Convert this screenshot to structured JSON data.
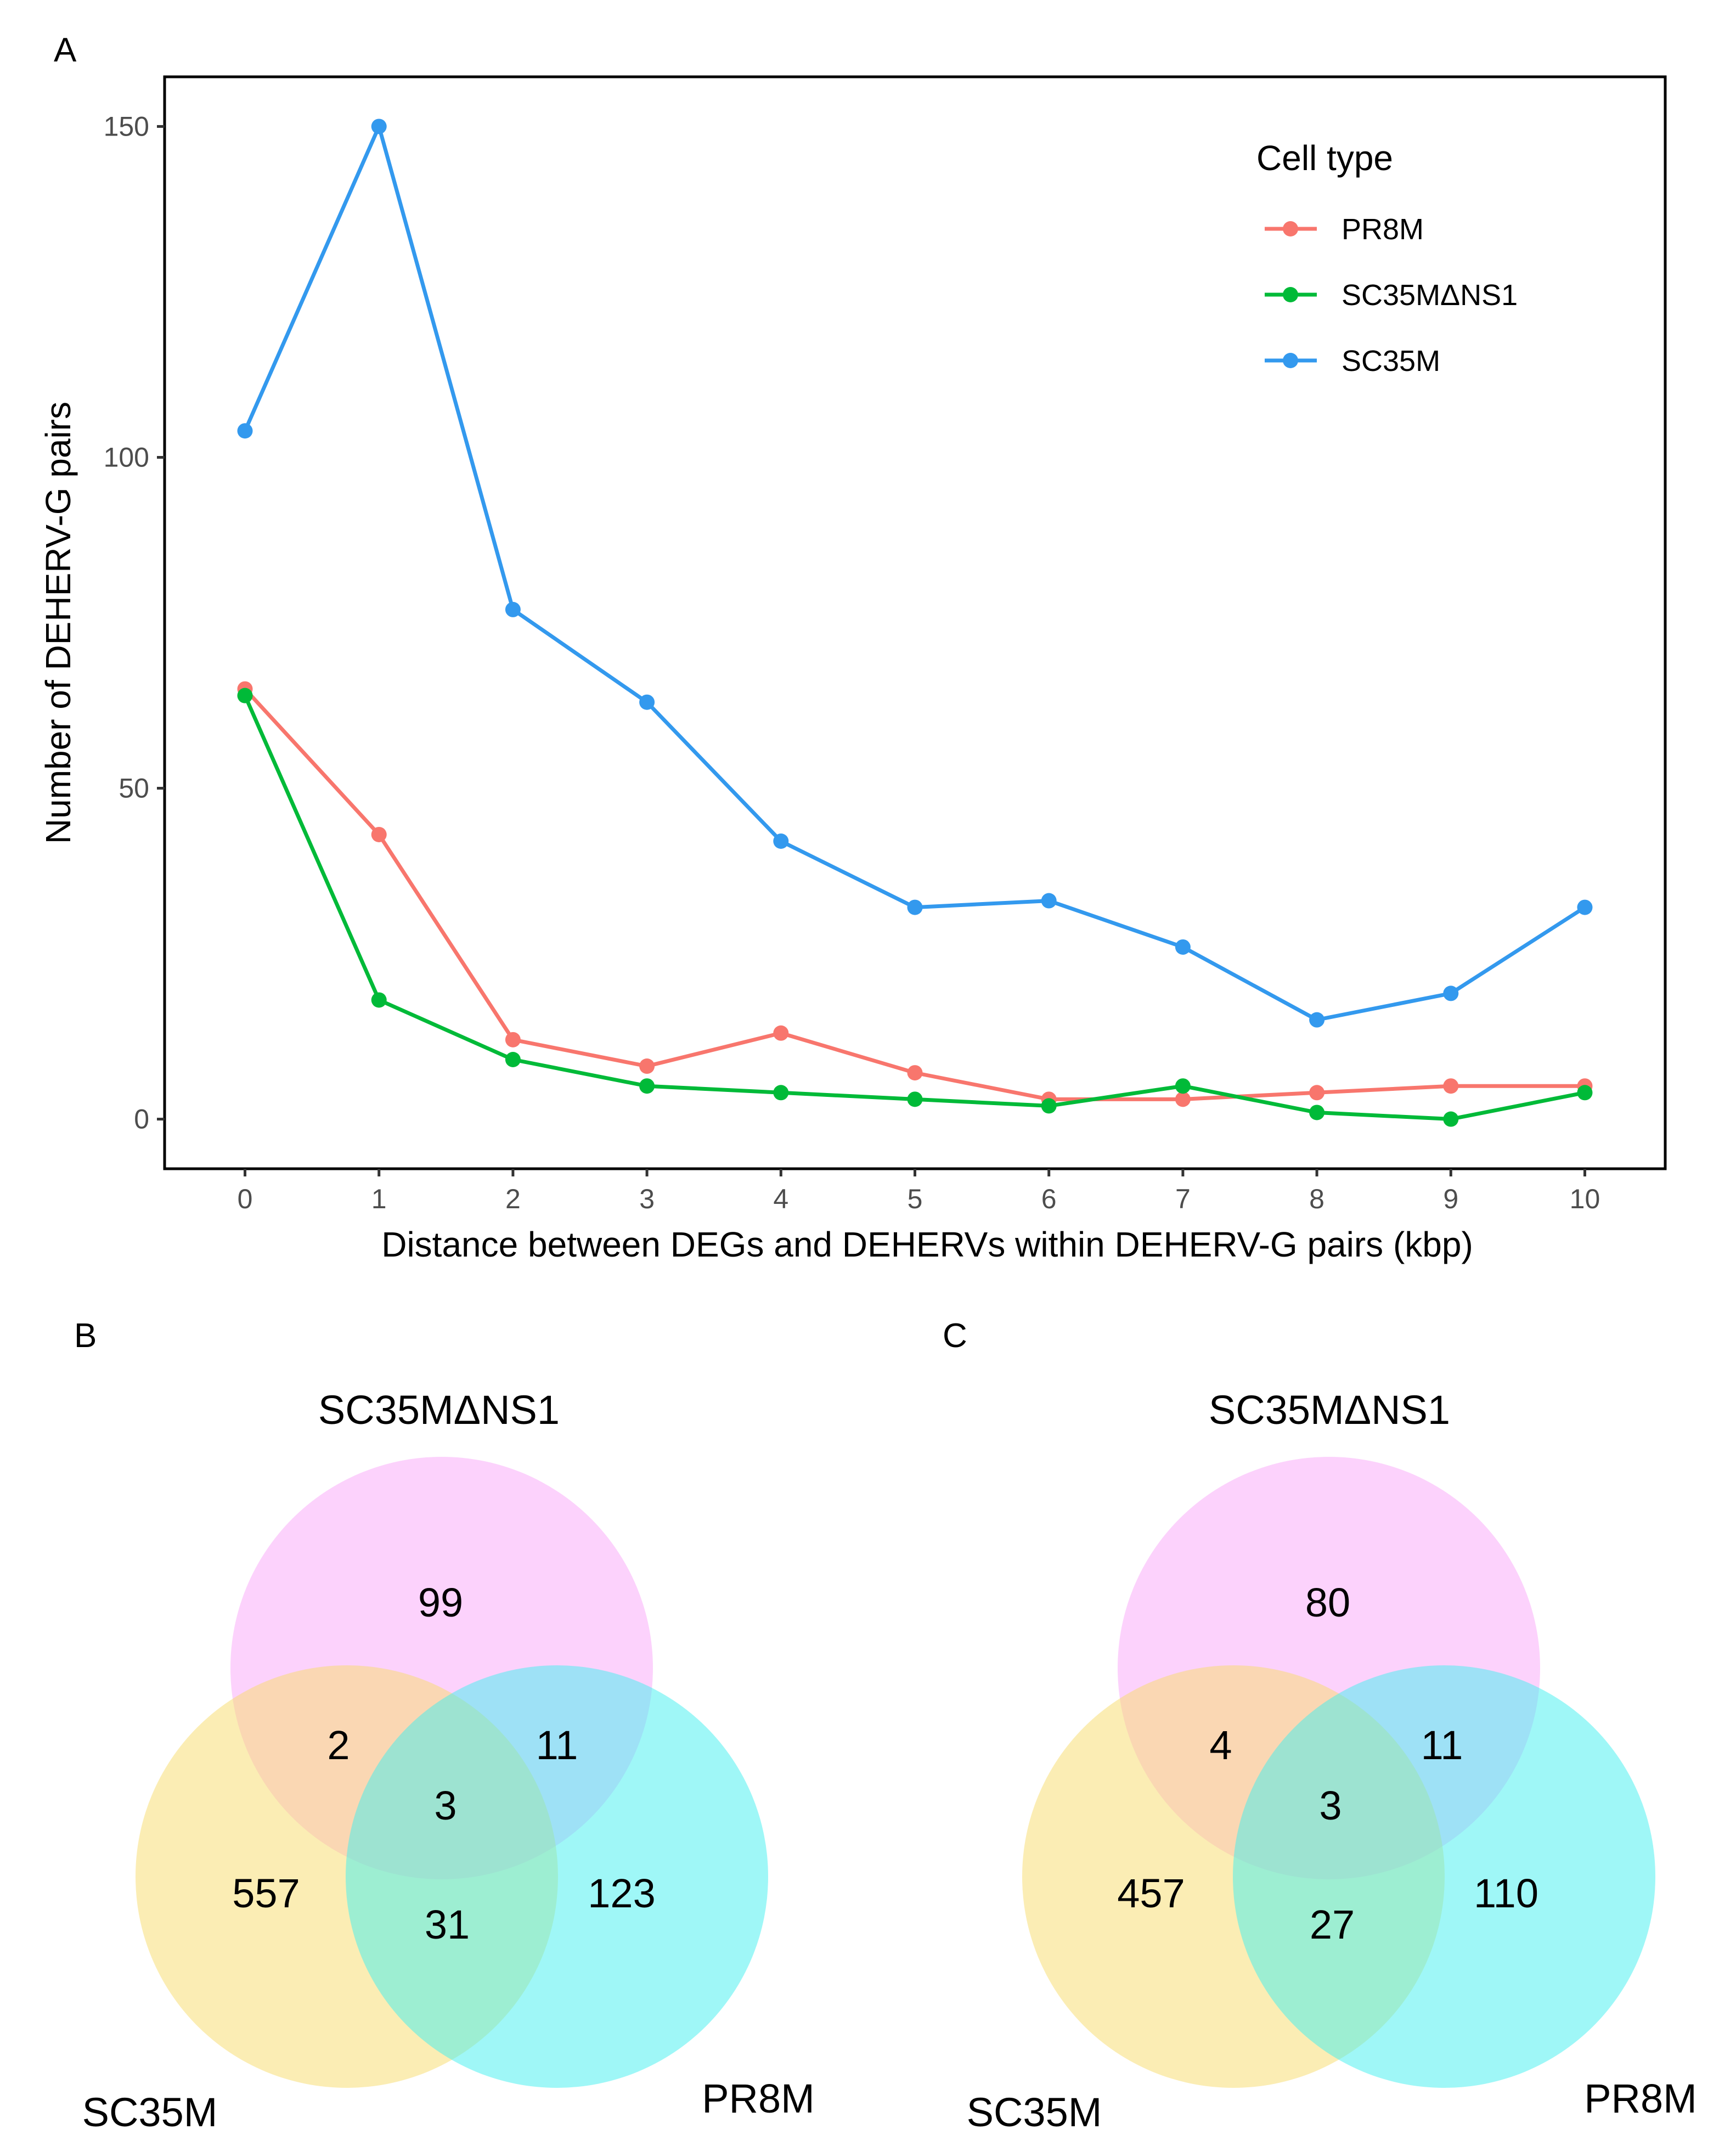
{
  "panels": {
    "a": "A",
    "b": "B",
    "c": "C"
  },
  "chart_data": [
    {
      "type": "line",
      "panel": "A",
      "title": "",
      "xlabel": "Distance between DEGs and DEHERVs within DEHERV-G pairs (kbp)",
      "ylabel": "Number of DEHERV-G pairs",
      "x": [
        0,
        1,
        2,
        3,
        4,
        5,
        6,
        7,
        8,
        9,
        10
      ],
      "xlim": [
        -0.6,
        10.6
      ],
      "ylim": [
        -7.5,
        157.5
      ],
      "xticks": [
        "0",
        "1",
        "2",
        "3",
        "4",
        "5",
        "6",
        "7",
        "8",
        "9",
        "10"
      ],
      "yticks": [
        "0",
        "50",
        "100",
        "150"
      ],
      "grid": false,
      "legend": {
        "title": "Cell type",
        "placement": "top-right"
      },
      "series": [
        {
          "name": "PR8M",
          "color": "#F8766D",
          "values": [
            65,
            43,
            12,
            8,
            13,
            7,
            3,
            3,
            4,
            5,
            5
          ]
        },
        {
          "name": "SC35MΔNS1",
          "color": "#00BA38",
          "values": [
            64,
            18,
            9,
            5,
            4,
            3,
            2,
            5,
            1,
            0,
            4
          ]
        },
        {
          "name": "SC35M",
          "color": "#3399EE",
          "values": [
            104,
            150,
            77,
            63,
            42,
            32,
            33,
            26,
            15,
            19,
            32
          ]
        }
      ]
    },
    {
      "type": "venn",
      "panel": "B",
      "sets": [
        {
          "name": "SC35MΔNS1",
          "color": "#F9A6F9"
        },
        {
          "name": "SC35M",
          "color": "#F8DC6A"
        },
        {
          "name": "PR8M",
          "color": "#3FEFF0"
        }
      ],
      "regions": {
        "only_SC35MΔNS1": "99",
        "only_SC35M": "557",
        "only_PR8M": "123",
        "SC35MΔNS1_SC35M": "2",
        "SC35MΔNS1_PR8M": "11",
        "SC35M_PR8M": "31",
        "all": "3"
      }
    },
    {
      "type": "venn",
      "panel": "C",
      "sets": [
        {
          "name": "SC35MΔNS1",
          "color": "#F9A6F9"
        },
        {
          "name": "SC35M",
          "color": "#F8DC6A"
        },
        {
          "name": "PR8M",
          "color": "#3FEFF0"
        }
      ],
      "regions": {
        "only_SC35MΔNS1": "80",
        "only_SC35M": "457",
        "only_PR8M": "110",
        "SC35MΔNS1_SC35M": "4",
        "SC35MΔNS1_PR8M": "11",
        "SC35M_PR8M": "27",
        "all": "3"
      }
    }
  ]
}
